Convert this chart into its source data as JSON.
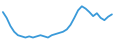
{
  "y_values": [
    72,
    62,
    48,
    38,
    32,
    30,
    28,
    30,
    28,
    30,
    32,
    30,
    28,
    32,
    34,
    36,
    38,
    42,
    50,
    62,
    75,
    82,
    78,
    72,
    65,
    70,
    62,
    58,
    64,
    68
  ],
  "line_color": "#3a9ad9",
  "line_width": 1.3,
  "background_color": "#ffffff",
  "ylim": [
    22,
    92
  ],
  "xlim": [
    -0.5,
    29.5
  ]
}
